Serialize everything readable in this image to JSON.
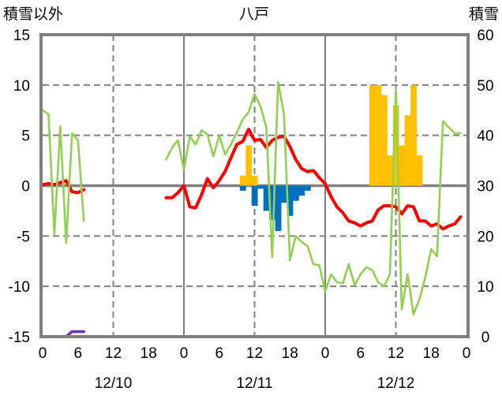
{
  "chart_data": {
    "type": "bar+line",
    "title": "八戸",
    "left_axis_title": "積雪以外",
    "right_axis_title": "積雪",
    "ylim_left": [
      -15,
      15
    ],
    "yticks_left": [
      15,
      10,
      5,
      0,
      -5,
      -10,
      -15
    ],
    "ylim_right": [
      0,
      60
    ],
    "yticks_right": [
      60,
      50,
      40,
      30,
      20,
      10,
      0
    ],
    "xlim_hours": [
      0,
      72
    ],
    "xtick_labels": [
      "0",
      "6",
      "12",
      "18",
      "0",
      "6",
      "12",
      "18",
      "0",
      "6",
      "12",
      "18",
      "0"
    ],
    "date_labels": [
      "12/10",
      "12/11",
      "12/12"
    ],
    "grid": true,
    "colors": {
      "red": "#ff0000",
      "green": "#92d050",
      "blue": "#0070c0",
      "orange": "#ffc000",
      "purple": "#7030a0",
      "axis": "#808080"
    },
    "red_line_left_axis": [
      0.1,
      0.2,
      0.1,
      0.3,
      0.5,
      -0.6,
      -0.7,
      -0.4,
      null,
      null,
      null,
      null,
      null,
      null,
      null,
      null,
      null,
      null,
      null,
      null,
      null,
      -1.2,
      -1.2,
      -0.7,
      0,
      -2.1,
      -2.2,
      -0.9,
      0.7,
      -0.2,
      0.5,
      1.4,
      2.8,
      4.1,
      4.4,
      5.6,
      4.5,
      4.6,
      3.8,
      4.5,
      4.8,
      4.9,
      3.9,
      2.6,
      1.7,
      1.4,
      1.5,
      0.8,
      0.2,
      -1.1,
      -2.1,
      -2.7,
      -3.5,
      -3.7,
      -4.0,
      -3.7,
      -3.5,
      -2.4,
      -2.0,
      -2.0,
      -2.1,
      -2.8,
      -2.0,
      -2.1,
      -3.5,
      -3.5,
      -4.0,
      -3.8,
      -4.3,
      -4.0,
      -3.8,
      -3.1
    ],
    "green_line_left_axis": [
      7.5,
      7.1,
      -4.8,
      5.9,
      -5.7,
      5.2,
      4.5,
      -3.5,
      null,
      null,
      null,
      null,
      null,
      null,
      null,
      null,
      null,
      null,
      null,
      null,
      null,
      2.6,
      3.8,
      4.5,
      1.6,
      4.9,
      4.1,
      5.5,
      5.1,
      2.9,
      5.0,
      3.1,
      4.1,
      5.3,
      6.6,
      7.3,
      9.1,
      7.9,
      5.8,
      -7.1,
      10.3,
      7.1,
      -7.4,
      -5.0,
      -5.6,
      -6.0,
      -7.8,
      -7.9,
      -10.5,
      -8.8,
      -9.6,
      -9.7,
      -7.8,
      -9.9,
      -8.8,
      -8.1,
      -8.4,
      -9.6,
      -10.0,
      -8.8,
      9.5,
      -12.3,
      -8.8,
      -12.8,
      -11.3,
      -9.1,
      -6.3,
      -7.0,
      6.4,
      5.8,
      5.2,
      5.2
    ],
    "purple_line_right_axis": [
      0,
      0,
      0,
      0,
      0,
      1,
      1,
      1,
      null,
      null,
      null,
      null,
      null,
      null,
      null,
      null,
      null,
      null,
      null,
      null,
      null,
      0,
      0,
      0,
      0,
      0,
      0,
      0,
      0,
      0,
      0,
      0,
      0,
      0,
      0,
      0,
      0,
      0,
      0,
      0,
      0,
      0,
      0,
      0,
      0,
      0,
      0,
      0,
      0,
      0,
      0,
      0,
      0,
      0,
      0,
      0,
      0,
      0,
      0,
      0,
      0,
      0,
      0,
      0,
      0,
      0,
      0,
      0,
      0,
      0,
      0,
      0
    ],
    "orange_bars_left_axis": [
      {
        "hour": 34,
        "value": 1
      },
      {
        "hour": 35,
        "value": 4
      },
      {
        "hour": 36,
        "value": 1
      },
      {
        "hour": 56,
        "value": 10
      },
      {
        "hour": 57,
        "value": 10
      },
      {
        "hour": 58,
        "value": 9
      },
      {
        "hour": 59,
        "value": 3
      },
      {
        "hour": 60,
        "value": 8
      },
      {
        "hour": 61,
        "value": 4
      },
      {
        "hour": 62,
        "value": 7
      },
      {
        "hour": 63,
        "value": 10
      },
      {
        "hour": 64,
        "value": 3
      }
    ],
    "blue_bars_left_axis": [
      {
        "hour": 34,
        "value": -0.5
      },
      {
        "hour": 36,
        "value": -2.0
      },
      {
        "hour": 37,
        "value": -0.3
      },
      {
        "hour": 38,
        "value": -2.5
      },
      {
        "hour": 39,
        "value": -3.4
      },
      {
        "hour": 40,
        "value": -4.5
      },
      {
        "hour": 41,
        "value": -1.7
      },
      {
        "hour": 42,
        "value": -3.0
      },
      {
        "hour": 43,
        "value": -1.5
      },
      {
        "hour": 44,
        "value": -1.0
      },
      {
        "hour": 45,
        "value": -0.5
      }
    ]
  }
}
